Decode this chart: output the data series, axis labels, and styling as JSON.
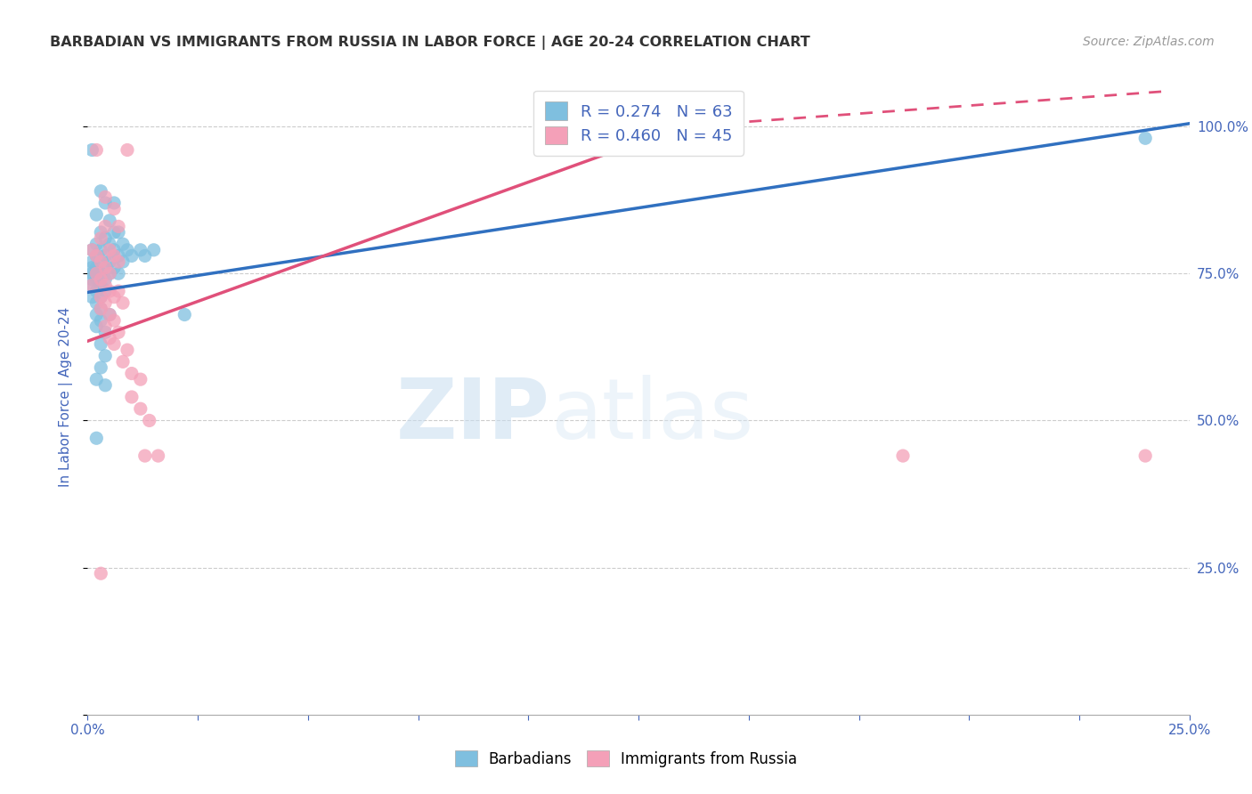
{
  "title": "BARBADIAN VS IMMIGRANTS FROM RUSSIA IN LABOR FORCE | AGE 20-24 CORRELATION CHART",
  "source": "Source: ZipAtlas.com",
  "ylabel": "In Labor Force | Age 20-24",
  "xlim": [
    0.0,
    0.25
  ],
  "ylim": [
    0.0,
    1.08
  ],
  "xticks": [
    0.0,
    0.025,
    0.05,
    0.075,
    0.1,
    0.125,
    0.15,
    0.175,
    0.2,
    0.225,
    0.25
  ],
  "yticks": [
    0.0,
    0.25,
    0.5,
    0.75,
    1.0
  ],
  "ytick_labels": [
    "",
    "25.0%",
    "50.0%",
    "75.0%",
    "100.0%"
  ],
  "xtick_labels": [
    "0.0%",
    "",
    "",
    "",
    "",
    "",
    "",
    "",
    "",
    "",
    "25.0%"
  ],
  "blue_color": "#7fbfdf",
  "pink_color": "#f4a0b8",
  "line_blue": "#3070c0",
  "line_pink": "#e0507a",
  "r_blue": 0.274,
  "n_blue": 63,
  "r_pink": 0.46,
  "n_pink": 45,
  "watermark_zip": "ZIP",
  "watermark_atlas": "atlas",
  "title_color": "#333333",
  "axis_label_color": "#4466bb",
  "tick_color": "#4466bb",
  "blue_line_x0": 0.0,
  "blue_line_y0": 0.718,
  "blue_line_x1": 0.25,
  "blue_line_y1": 1.005,
  "pink_line_x0": 0.0,
  "pink_line_y0": 0.635,
  "pink_line_x1_solid": 0.135,
  "pink_line_y1_solid": 1.0,
  "pink_line_x1_dash": 0.245,
  "pink_line_y1_dash": 1.06,
  "blue_scatter": [
    [
      0.001,
      0.96
    ],
    [
      0.003,
      0.89
    ],
    [
      0.004,
      0.87
    ],
    [
      0.006,
      0.87
    ],
    [
      0.002,
      0.85
    ],
    [
      0.005,
      0.84
    ],
    [
      0.003,
      0.82
    ],
    [
      0.007,
      0.82
    ],
    [
      0.004,
      0.81
    ],
    [
      0.006,
      0.82
    ],
    [
      0.002,
      0.8
    ],
    [
      0.005,
      0.8
    ],
    [
      0.008,
      0.8
    ],
    [
      0.001,
      0.79
    ],
    [
      0.003,
      0.79
    ],
    [
      0.006,
      0.79
    ],
    [
      0.009,
      0.79
    ],
    [
      0.002,
      0.78
    ],
    [
      0.004,
      0.78
    ],
    [
      0.007,
      0.78
    ],
    [
      0.01,
      0.78
    ],
    [
      0.001,
      0.77
    ],
    [
      0.003,
      0.77
    ],
    [
      0.005,
      0.77
    ],
    [
      0.008,
      0.77
    ],
    [
      0.001,
      0.76
    ],
    [
      0.002,
      0.76
    ],
    [
      0.004,
      0.76
    ],
    [
      0.006,
      0.76
    ],
    [
      0.001,
      0.75
    ],
    [
      0.002,
      0.75
    ],
    [
      0.003,
      0.75
    ],
    [
      0.005,
      0.75
    ],
    [
      0.007,
      0.75
    ],
    [
      0.001,
      0.74
    ],
    [
      0.002,
      0.74
    ],
    [
      0.004,
      0.74
    ],
    [
      0.001,
      0.73
    ],
    [
      0.003,
      0.73
    ],
    [
      0.002,
      0.72
    ],
    [
      0.004,
      0.72
    ],
    [
      0.001,
      0.71
    ],
    [
      0.003,
      0.71
    ],
    [
      0.002,
      0.7
    ],
    [
      0.003,
      0.69
    ],
    [
      0.002,
      0.68
    ],
    [
      0.005,
      0.68
    ],
    [
      0.003,
      0.67
    ],
    [
      0.002,
      0.66
    ],
    [
      0.004,
      0.65
    ],
    [
      0.003,
      0.63
    ],
    [
      0.004,
      0.61
    ],
    [
      0.003,
      0.59
    ],
    [
      0.002,
      0.57
    ],
    [
      0.004,
      0.56
    ],
    [
      0.002,
      0.47
    ],
    [
      0.012,
      0.79
    ],
    [
      0.013,
      0.78
    ],
    [
      0.015,
      0.79
    ],
    [
      0.022,
      0.68
    ],
    [
      0.135,
      1.0
    ],
    [
      0.24,
      0.98
    ]
  ],
  "pink_scatter": [
    [
      0.002,
      0.96
    ],
    [
      0.009,
      0.96
    ],
    [
      0.004,
      0.88
    ],
    [
      0.006,
      0.86
    ],
    [
      0.004,
      0.83
    ],
    [
      0.007,
      0.83
    ],
    [
      0.003,
      0.81
    ],
    [
      0.001,
      0.79
    ],
    [
      0.005,
      0.79
    ],
    [
      0.002,
      0.78
    ],
    [
      0.006,
      0.78
    ],
    [
      0.003,
      0.77
    ],
    [
      0.007,
      0.77
    ],
    [
      0.004,
      0.76
    ],
    [
      0.002,
      0.75
    ],
    [
      0.005,
      0.75
    ],
    [
      0.003,
      0.74
    ],
    [
      0.001,
      0.73
    ],
    [
      0.004,
      0.73
    ],
    [
      0.005,
      0.72
    ],
    [
      0.007,
      0.72
    ],
    [
      0.003,
      0.71
    ],
    [
      0.006,
      0.71
    ],
    [
      0.004,
      0.7
    ],
    [
      0.008,
      0.7
    ],
    [
      0.003,
      0.69
    ],
    [
      0.005,
      0.68
    ],
    [
      0.006,
      0.67
    ],
    [
      0.004,
      0.66
    ],
    [
      0.007,
      0.65
    ],
    [
      0.005,
      0.64
    ],
    [
      0.006,
      0.63
    ],
    [
      0.009,
      0.62
    ],
    [
      0.008,
      0.6
    ],
    [
      0.01,
      0.58
    ],
    [
      0.012,
      0.57
    ],
    [
      0.01,
      0.54
    ],
    [
      0.012,
      0.52
    ],
    [
      0.014,
      0.5
    ],
    [
      0.013,
      0.44
    ],
    [
      0.016,
      0.44
    ],
    [
      0.003,
      0.24
    ],
    [
      0.185,
      0.44
    ],
    [
      0.24,
      0.44
    ]
  ]
}
